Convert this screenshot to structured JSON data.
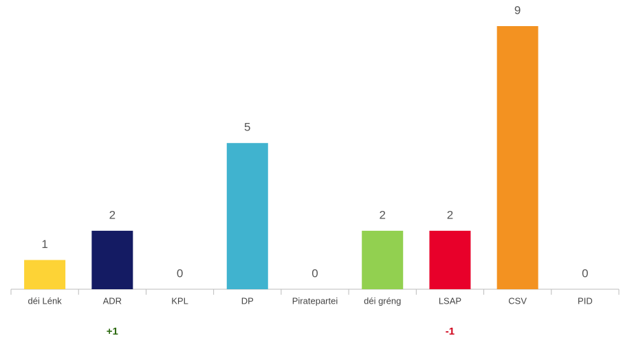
{
  "chart_data": {
    "type": "bar",
    "categories": [
      "déi Lénk",
      "ADR",
      "KPL",
      "DP",
      "Piratepartei",
      "déi gréng",
      "LSAP",
      "CSV",
      "PID"
    ],
    "values": [
      1,
      2,
      0,
      5,
      0,
      2,
      2,
      9,
      0
    ],
    "colors": [
      "#fdd336",
      "#141b63",
      null,
      "#40b3cf",
      null,
      "#92d050",
      "#e8002a",
      "#f39221",
      null
    ],
    "changes": [
      null,
      1,
      null,
      null,
      null,
      null,
      -1,
      null,
      null
    ],
    "change_labels": [
      null,
      "+1",
      null,
      null,
      null,
      null,
      "-1",
      null,
      null
    ],
    "gain_color": "#2e6b12",
    "loss_color": "#d0021b",
    "ylim": [
      0,
      9
    ]
  }
}
